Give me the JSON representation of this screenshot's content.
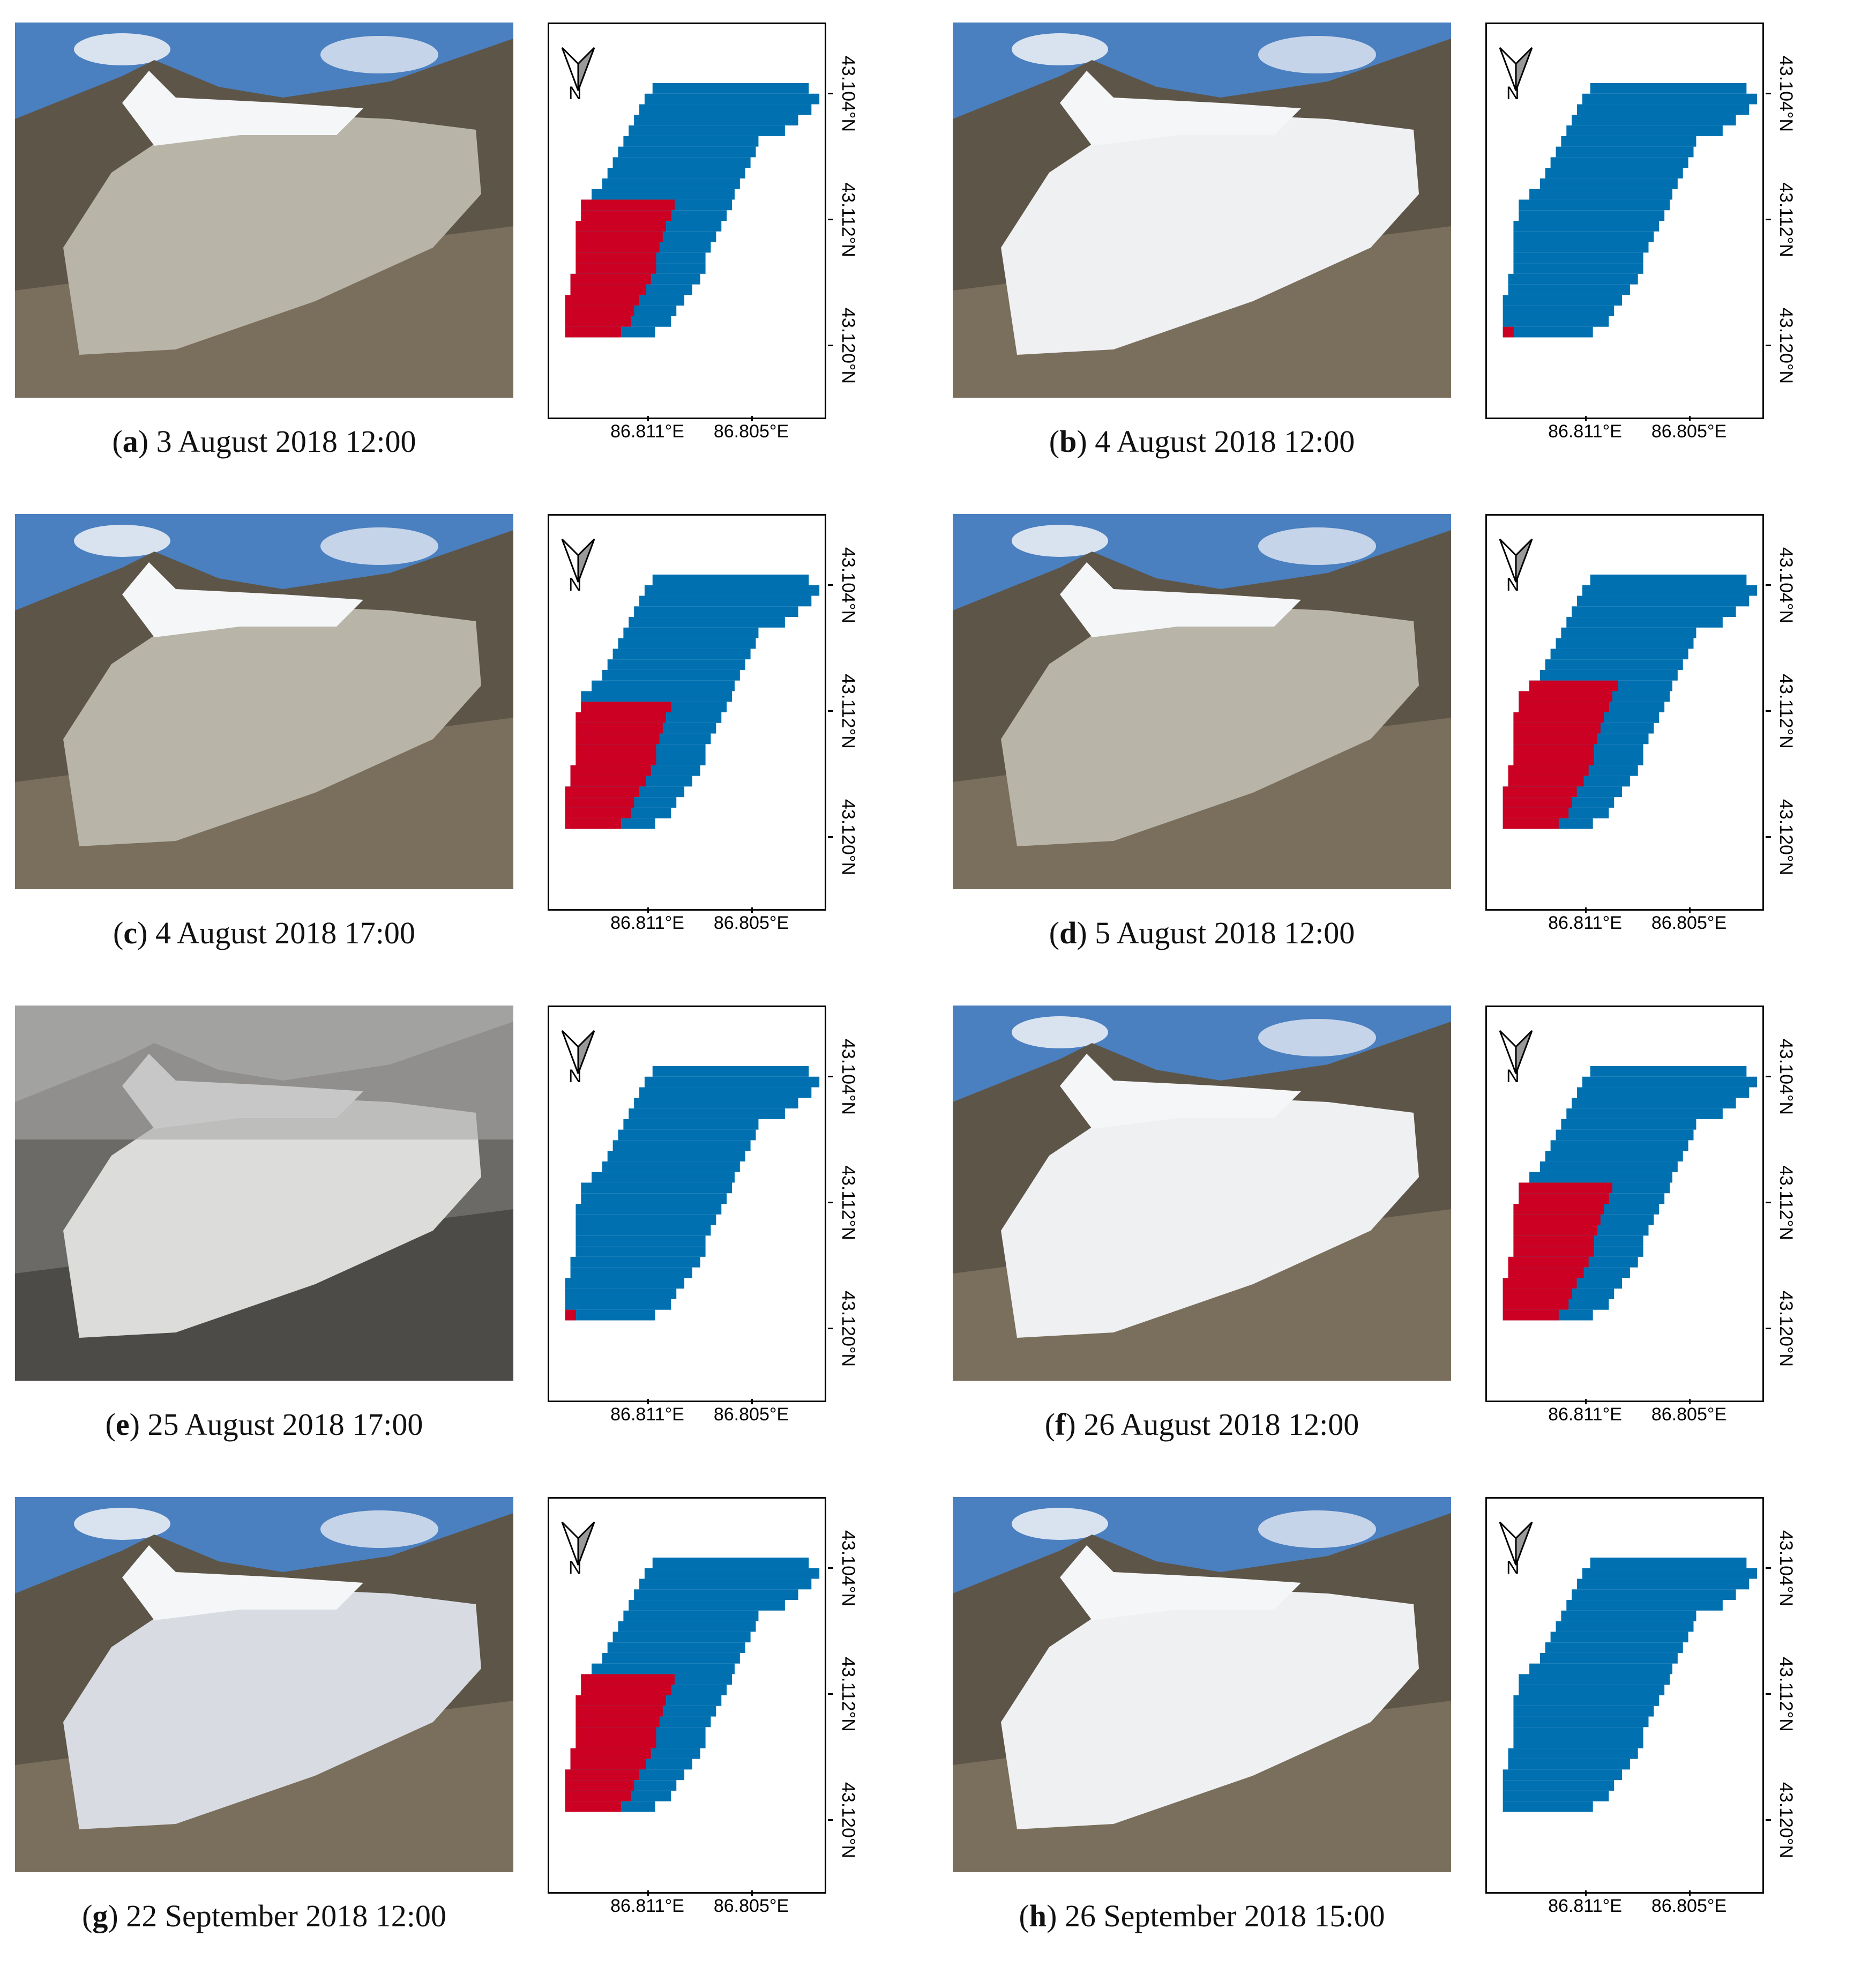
{
  "colors": {
    "ice": "#0070b0",
    "snow_line_red": "#cc0022"
  },
  "axes": {
    "lat_labels": [
      "43.104°N",
      "43.112°N",
      "43.120°N"
    ],
    "lon_labels": [
      "86.811°E",
      "86.805°E"
    ],
    "north_label": "N"
  },
  "panels": [
    {
      "letter": "a",
      "date": "3 August 2018 12:00",
      "scene": "rock",
      "red_level": 0.55
    },
    {
      "letter": "b",
      "date": "4 August 2018 12:00",
      "scene": "snow",
      "red_level": 0.05
    },
    {
      "letter": "c",
      "date": "4 August 2018 17:00",
      "scene": "rock",
      "red_level": 0.5
    },
    {
      "letter": "d",
      "date": "5 August 2018 12:00",
      "scene": "rock",
      "red_level": 0.6
    },
    {
      "letter": "e",
      "date": "25 August 2018 17:00",
      "scene": "fog",
      "red_level": 0.03
    },
    {
      "letter": "f",
      "date": "26 August 2018 12:00",
      "scene": "snow",
      "red_level": 0.55
    },
    {
      "letter": "g",
      "date": "22 September 2018 12:00",
      "scene": "mixed",
      "red_level": 0.55
    },
    {
      "letter": "h",
      "date": "26 September 2018 15:00",
      "scene": "snow",
      "red_level": 0
    }
  ]
}
